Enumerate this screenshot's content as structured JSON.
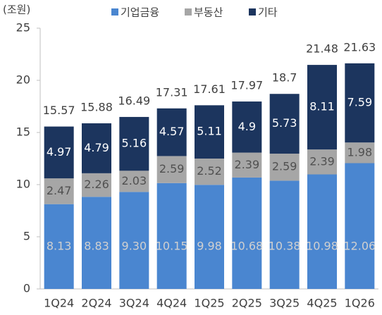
{
  "chart_data": {
    "type": "stacked_bar",
    "y_label": "(조원)",
    "categories": [
      "1Q24",
      "2Q24",
      "3Q24",
      "4Q24",
      "1Q25",
      "2Q25",
      "3Q25",
      "4Q25",
      "1Q26"
    ],
    "series": [
      {
        "name": "기업금융",
        "color": "#4a86d0",
        "values": [
          8.13,
          8.83,
          9.3,
          10.15,
          9.98,
          10.68,
          10.38,
          10.98,
          12.06
        ],
        "value_labels": [
          "8.13",
          "8.83",
          "9.30",
          "10.15",
          "9.98",
          "10.68",
          "10.38",
          "10.98",
          "12.06"
        ]
      },
      {
        "name": "부동산",
        "color": "#a6a6a6",
        "values": [
          2.47,
          2.26,
          2.03,
          2.59,
          2.52,
          2.39,
          2.59,
          2.39,
          1.98
        ]
      },
      {
        "name": "기타",
        "color": "#1c355e",
        "values": [
          4.97,
          4.79,
          5.16,
          4.57,
          5.11,
          4.9,
          5.73,
          8.11,
          7.59
        ]
      }
    ],
    "totals": [
      15.57,
      15.88,
      16.49,
      17.31,
      17.61,
      17.97,
      18.7,
      21.48,
      21.63
    ],
    "ylim": [
      0,
      25
    ],
    "yticks": [
      0,
      5,
      10,
      15,
      20,
      25
    ],
    "legend": "top"
  }
}
